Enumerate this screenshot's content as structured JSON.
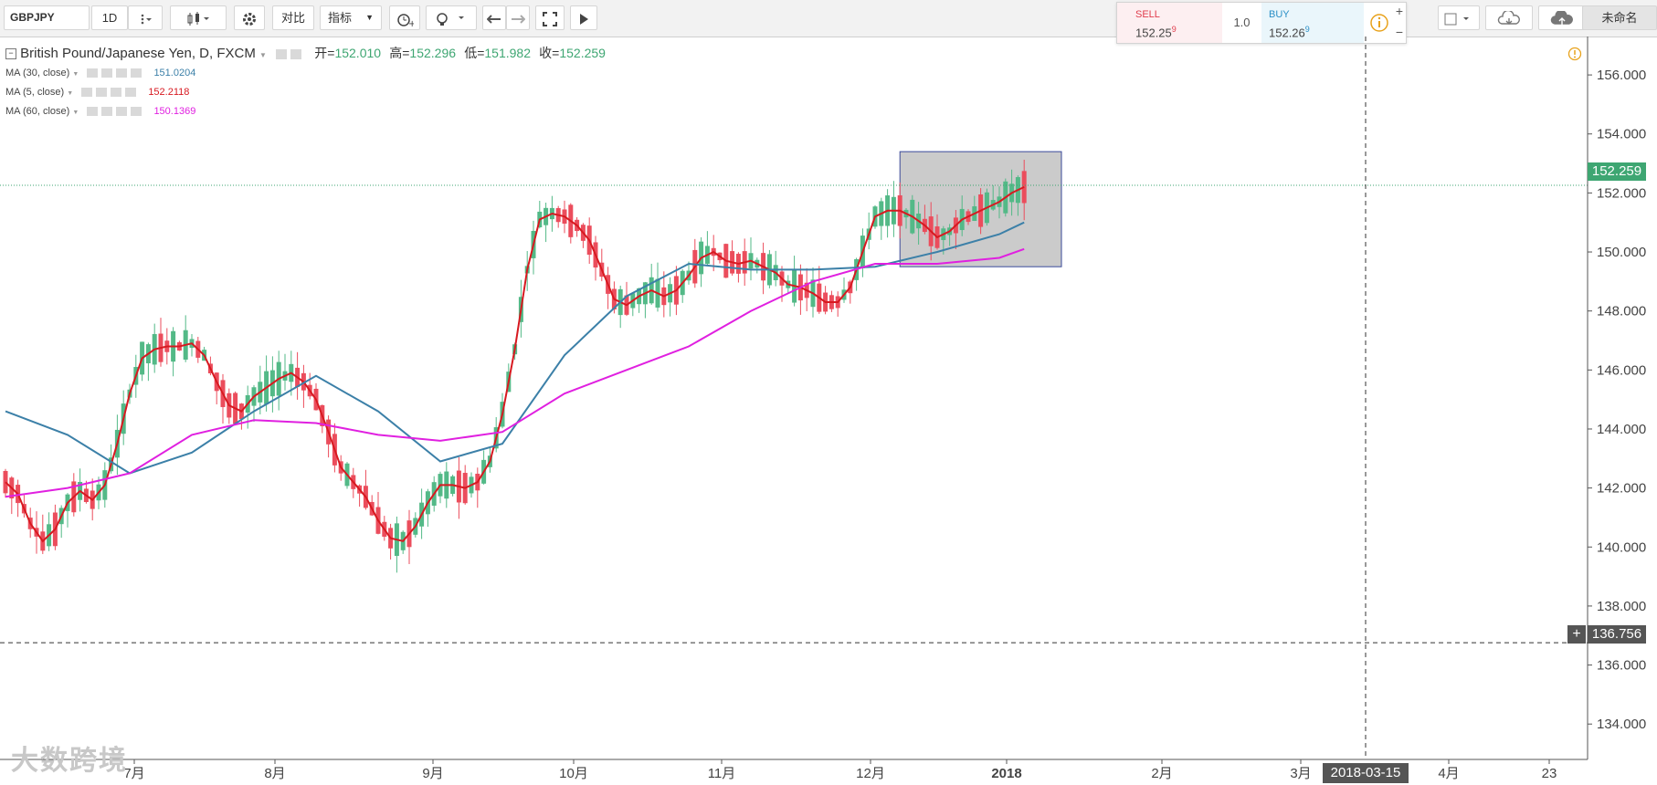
{
  "toolbar": {
    "symbol": "GBPJPY",
    "interval": "1D",
    "compare_label": "对比",
    "indicators_label": "指标",
    "layout_name": "未命名"
  },
  "trade_panel": {
    "sell_label": "SELL",
    "sell_price": "152.25",
    "sell_sup": "9",
    "quantity": "1.0",
    "buy_label": "BUY",
    "buy_price": "152.26",
    "buy_sup": "9",
    "plus": "+",
    "minus": "−"
  },
  "legend": {
    "title": "British Pound/Japanese Yen, D, FXCM",
    "open_label": "开=",
    "open_value": "152.010",
    "high_label": "高=",
    "high_value": "152.296",
    "low_label": "低=",
    "low_value": "151.982",
    "close_label": "收=",
    "close_value": "152.259"
  },
  "ma": [
    {
      "label": "MA (30, close)",
      "value": "151.0204",
      "color": "#3c80a8"
    },
    {
      "label": "MA (5, close)",
      "value": "152.2118",
      "color": "#d71920"
    },
    {
      "label": "MA (60, close)",
      "value": "150.1369",
      "color": "#e020e0"
    }
  ],
  "last_price_label": "152.259",
  "crosshair_price_label": "136.756",
  "crosshair_date_label": "2018-03-15",
  "watermark": "大数跨境",
  "colors": {
    "up": "#53b987",
    "down": "#eb4d5c",
    "ma5": "#d71920",
    "ma30": "#3c80a8",
    "ma60": "#e020e0",
    "price_label_bg": "#3ea672"
  },
  "chart_data": {
    "type": "candlestick",
    "symbol": "GBPJPY",
    "timeframe": "D",
    "ylim": [
      132.8,
      156.9
    ],
    "y_ticks": [
      "156.000",
      "154.000",
      "152.000",
      "150.000",
      "148.000",
      "146.000",
      "144.000",
      "142.000",
      "140.000",
      "138.000",
      "136.000",
      "134.000"
    ],
    "x_ticks": [
      "7月",
      "8月",
      "9月",
      "10月",
      "11月",
      "12月",
      "2018",
      "2月",
      "3月",
      "4月",
      "23"
    ],
    "grid": false,
    "series": [
      {
        "name": "MA (5, close)",
        "color": "#d71920",
        "points": [
          [
            0,
            142.2
          ],
          [
            2,
            141.8
          ],
          [
            4,
            140.8
          ],
          [
            6,
            140.2
          ],
          [
            8,
            140.6
          ],
          [
            10,
            141.5
          ],
          [
            12,
            141.9
          ],
          [
            14,
            141.6
          ],
          [
            16,
            142.1
          ],
          [
            18,
            143.5
          ],
          [
            20,
            145.2
          ],
          [
            22,
            146.4
          ],
          [
            24,
            146.7
          ],
          [
            26,
            146.8
          ],
          [
            28,
            146.8
          ],
          [
            30,
            146.9
          ],
          [
            32,
            146.5
          ],
          [
            34,
            145.6
          ],
          [
            36,
            144.8
          ],
          [
            38,
            144.6
          ],
          [
            40,
            145.1
          ],
          [
            42,
            145.4
          ],
          [
            44,
            145.7
          ],
          [
            46,
            145.9
          ],
          [
            48,
            145.6
          ],
          [
            50,
            145.0
          ],
          [
            52,
            143.9
          ],
          [
            54,
            142.7
          ],
          [
            56,
            142.2
          ],
          [
            58,
            141.7
          ],
          [
            60,
            140.9
          ],
          [
            62,
            140.3
          ],
          [
            64,
            140.2
          ],
          [
            66,
            140.7
          ],
          [
            68,
            141.5
          ],
          [
            70,
            142.1
          ],
          [
            72,
            142.1
          ],
          [
            74,
            142.0
          ],
          [
            76,
            142.2
          ],
          [
            78,
            142.9
          ],
          [
            80,
            144.5
          ],
          [
            82,
            146.7
          ],
          [
            84,
            149.4
          ],
          [
            86,
            151.1
          ],
          [
            88,
            151.3
          ],
          [
            90,
            151.2
          ],
          [
            92,
            150.9
          ],
          [
            94,
            150.4
          ],
          [
            96,
            149.4
          ],
          [
            98,
            148.4
          ],
          [
            100,
            148.2
          ],
          [
            102,
            148.5
          ],
          [
            104,
            148.7
          ],
          [
            106,
            148.5
          ],
          [
            108,
            148.7
          ],
          [
            110,
            149.2
          ],
          [
            112,
            149.8
          ],
          [
            114,
            150.0
          ],
          [
            116,
            149.7
          ],
          [
            118,
            149.6
          ],
          [
            120,
            149.7
          ],
          [
            122,
            149.5
          ],
          [
            124,
            149.3
          ],
          [
            126,
            148.9
          ],
          [
            128,
            148.8
          ],
          [
            130,
            148.6
          ],
          [
            132,
            148.3
          ],
          [
            134,
            148.3
          ],
          [
            136,
            148.8
          ],
          [
            138,
            150.0
          ],
          [
            140,
            151.2
          ],
          [
            142,
            151.4
          ],
          [
            144,
            151.4
          ],
          [
            146,
            151.2
          ],
          [
            148,
            150.9
          ],
          [
            150,
            150.5
          ],
          [
            152,
            150.7
          ],
          [
            154,
            151.1
          ],
          [
            156,
            151.3
          ],
          [
            158,
            151.5
          ],
          [
            160,
            151.7
          ],
          [
            162,
            152.0
          ],
          [
            164,
            152.2
          ]
        ]
      },
      {
        "name": "MA (30, close)",
        "color": "#3c80a8",
        "points": [
          [
            0,
            144.6
          ],
          [
            10,
            143.8
          ],
          [
            20,
            142.5
          ],
          [
            30,
            143.2
          ],
          [
            40,
            144.6
          ],
          [
            50,
            145.8
          ],
          [
            60,
            144.6
          ],
          [
            70,
            142.9
          ],
          [
            80,
            143.5
          ],
          [
            90,
            146.5
          ],
          [
            100,
            148.5
          ],
          [
            110,
            149.6
          ],
          [
            120,
            149.4
          ],
          [
            130,
            149.4
          ],
          [
            140,
            149.5
          ],
          [
            150,
            150.0
          ],
          [
            160,
            150.6
          ],
          [
            164,
            151.0
          ]
        ]
      },
      {
        "name": "MA (60, close)",
        "color": "#e020e0",
        "points": [
          [
            0,
            141.7
          ],
          [
            10,
            142.0
          ],
          [
            20,
            142.5
          ],
          [
            30,
            143.8
          ],
          [
            40,
            144.3
          ],
          [
            50,
            144.2
          ],
          [
            60,
            143.8
          ],
          [
            70,
            143.6
          ],
          [
            80,
            143.9
          ],
          [
            90,
            145.2
          ],
          [
            100,
            146.0
          ],
          [
            110,
            146.8
          ],
          [
            120,
            148.0
          ],
          [
            130,
            149.0
          ],
          [
            140,
            149.6
          ],
          [
            150,
            149.6
          ],
          [
            160,
            149.8
          ],
          [
            164,
            150.1
          ]
        ]
      }
    ],
    "annotations": [
      {
        "type": "rectangle",
        "from": [
          144,
          153.4
        ],
        "to": [
          170,
          149.5
        ],
        "fill": "#c8c8c8"
      },
      {
        "type": "horizontal-line",
        "value": 152.259
      },
      {
        "type": "crosshair",
        "value": 136.756,
        "date": "2018-03-15"
      }
    ]
  }
}
